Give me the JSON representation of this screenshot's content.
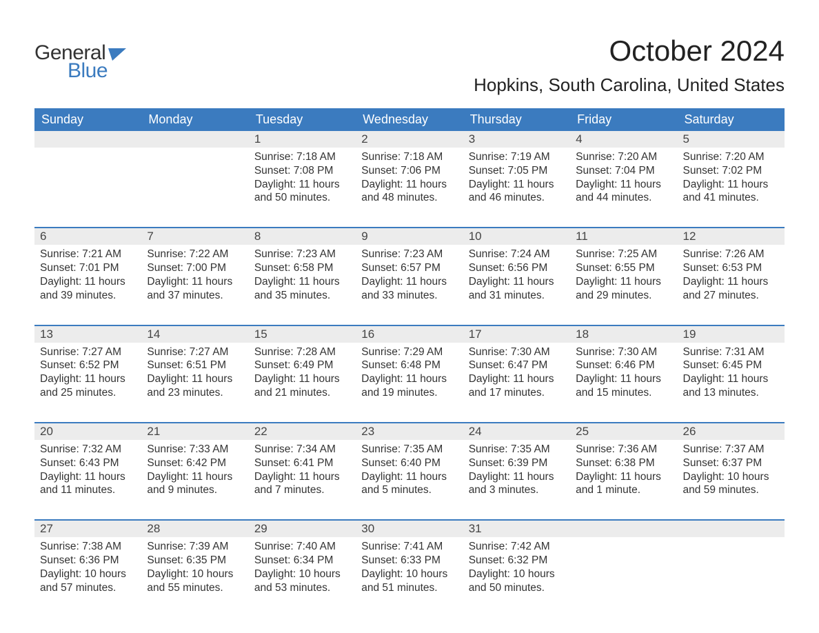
{
  "logo": {
    "line1": "General",
    "line2": "Blue",
    "flag_color": "#3b7bbf"
  },
  "title": "October 2024",
  "location": "Hopkins, South Carolina, United States",
  "colors": {
    "header_bg": "#3b7bbf",
    "header_text": "#ffffff",
    "daynum_bg": "#ececec",
    "body_text": "#333333",
    "rule": "#3b7bbf"
  },
  "fonts": {
    "title_size": 42,
    "location_size": 26,
    "header_size": 18,
    "body_size": 15.5
  },
  "day_names": [
    "Sunday",
    "Monday",
    "Tuesday",
    "Wednesday",
    "Thursday",
    "Friday",
    "Saturday"
  ],
  "weeks": [
    [
      null,
      null,
      {
        "n": "1",
        "sr": "Sunrise: 7:18 AM",
        "ss": "Sunset: 7:08 PM",
        "d1": "Daylight: 11 hours",
        "d2": "and 50 minutes."
      },
      {
        "n": "2",
        "sr": "Sunrise: 7:18 AM",
        "ss": "Sunset: 7:06 PM",
        "d1": "Daylight: 11 hours",
        "d2": "and 48 minutes."
      },
      {
        "n": "3",
        "sr": "Sunrise: 7:19 AM",
        "ss": "Sunset: 7:05 PM",
        "d1": "Daylight: 11 hours",
        "d2": "and 46 minutes."
      },
      {
        "n": "4",
        "sr": "Sunrise: 7:20 AM",
        "ss": "Sunset: 7:04 PM",
        "d1": "Daylight: 11 hours",
        "d2": "and 44 minutes."
      },
      {
        "n": "5",
        "sr": "Sunrise: 7:20 AM",
        "ss": "Sunset: 7:02 PM",
        "d1": "Daylight: 11 hours",
        "d2": "and 41 minutes."
      }
    ],
    [
      {
        "n": "6",
        "sr": "Sunrise: 7:21 AM",
        "ss": "Sunset: 7:01 PM",
        "d1": "Daylight: 11 hours",
        "d2": "and 39 minutes."
      },
      {
        "n": "7",
        "sr": "Sunrise: 7:22 AM",
        "ss": "Sunset: 7:00 PM",
        "d1": "Daylight: 11 hours",
        "d2": "and 37 minutes."
      },
      {
        "n": "8",
        "sr": "Sunrise: 7:23 AM",
        "ss": "Sunset: 6:58 PM",
        "d1": "Daylight: 11 hours",
        "d2": "and 35 minutes."
      },
      {
        "n": "9",
        "sr": "Sunrise: 7:23 AM",
        "ss": "Sunset: 6:57 PM",
        "d1": "Daylight: 11 hours",
        "d2": "and 33 minutes."
      },
      {
        "n": "10",
        "sr": "Sunrise: 7:24 AM",
        "ss": "Sunset: 6:56 PM",
        "d1": "Daylight: 11 hours",
        "d2": "and 31 minutes."
      },
      {
        "n": "11",
        "sr": "Sunrise: 7:25 AM",
        "ss": "Sunset: 6:55 PM",
        "d1": "Daylight: 11 hours",
        "d2": "and 29 minutes."
      },
      {
        "n": "12",
        "sr": "Sunrise: 7:26 AM",
        "ss": "Sunset: 6:53 PM",
        "d1": "Daylight: 11 hours",
        "d2": "and 27 minutes."
      }
    ],
    [
      {
        "n": "13",
        "sr": "Sunrise: 7:27 AM",
        "ss": "Sunset: 6:52 PM",
        "d1": "Daylight: 11 hours",
        "d2": "and 25 minutes."
      },
      {
        "n": "14",
        "sr": "Sunrise: 7:27 AM",
        "ss": "Sunset: 6:51 PM",
        "d1": "Daylight: 11 hours",
        "d2": "and 23 minutes."
      },
      {
        "n": "15",
        "sr": "Sunrise: 7:28 AM",
        "ss": "Sunset: 6:49 PM",
        "d1": "Daylight: 11 hours",
        "d2": "and 21 minutes."
      },
      {
        "n": "16",
        "sr": "Sunrise: 7:29 AM",
        "ss": "Sunset: 6:48 PM",
        "d1": "Daylight: 11 hours",
        "d2": "and 19 minutes."
      },
      {
        "n": "17",
        "sr": "Sunrise: 7:30 AM",
        "ss": "Sunset: 6:47 PM",
        "d1": "Daylight: 11 hours",
        "d2": "and 17 minutes."
      },
      {
        "n": "18",
        "sr": "Sunrise: 7:30 AM",
        "ss": "Sunset: 6:46 PM",
        "d1": "Daylight: 11 hours",
        "d2": "and 15 minutes."
      },
      {
        "n": "19",
        "sr": "Sunrise: 7:31 AM",
        "ss": "Sunset: 6:45 PM",
        "d1": "Daylight: 11 hours",
        "d2": "and 13 minutes."
      }
    ],
    [
      {
        "n": "20",
        "sr": "Sunrise: 7:32 AM",
        "ss": "Sunset: 6:43 PM",
        "d1": "Daylight: 11 hours",
        "d2": "and 11 minutes."
      },
      {
        "n": "21",
        "sr": "Sunrise: 7:33 AM",
        "ss": "Sunset: 6:42 PM",
        "d1": "Daylight: 11 hours",
        "d2": "and 9 minutes."
      },
      {
        "n": "22",
        "sr": "Sunrise: 7:34 AM",
        "ss": "Sunset: 6:41 PM",
        "d1": "Daylight: 11 hours",
        "d2": "and 7 minutes."
      },
      {
        "n": "23",
        "sr": "Sunrise: 7:35 AM",
        "ss": "Sunset: 6:40 PM",
        "d1": "Daylight: 11 hours",
        "d2": "and 5 minutes."
      },
      {
        "n": "24",
        "sr": "Sunrise: 7:35 AM",
        "ss": "Sunset: 6:39 PM",
        "d1": "Daylight: 11 hours",
        "d2": "and 3 minutes."
      },
      {
        "n": "25",
        "sr": "Sunrise: 7:36 AM",
        "ss": "Sunset: 6:38 PM",
        "d1": "Daylight: 11 hours",
        "d2": "and 1 minute."
      },
      {
        "n": "26",
        "sr": "Sunrise: 7:37 AM",
        "ss": "Sunset: 6:37 PM",
        "d1": "Daylight: 10 hours",
        "d2": "and 59 minutes."
      }
    ],
    [
      {
        "n": "27",
        "sr": "Sunrise: 7:38 AM",
        "ss": "Sunset: 6:36 PM",
        "d1": "Daylight: 10 hours",
        "d2": "and 57 minutes."
      },
      {
        "n": "28",
        "sr": "Sunrise: 7:39 AM",
        "ss": "Sunset: 6:35 PM",
        "d1": "Daylight: 10 hours",
        "d2": "and 55 minutes."
      },
      {
        "n": "29",
        "sr": "Sunrise: 7:40 AM",
        "ss": "Sunset: 6:34 PM",
        "d1": "Daylight: 10 hours",
        "d2": "and 53 minutes."
      },
      {
        "n": "30",
        "sr": "Sunrise: 7:41 AM",
        "ss": "Sunset: 6:33 PM",
        "d1": "Daylight: 10 hours",
        "d2": "and 51 minutes."
      },
      {
        "n": "31",
        "sr": "Sunrise: 7:42 AM",
        "ss": "Sunset: 6:32 PM",
        "d1": "Daylight: 10 hours",
        "d2": "and 50 minutes."
      },
      null,
      null
    ]
  ]
}
